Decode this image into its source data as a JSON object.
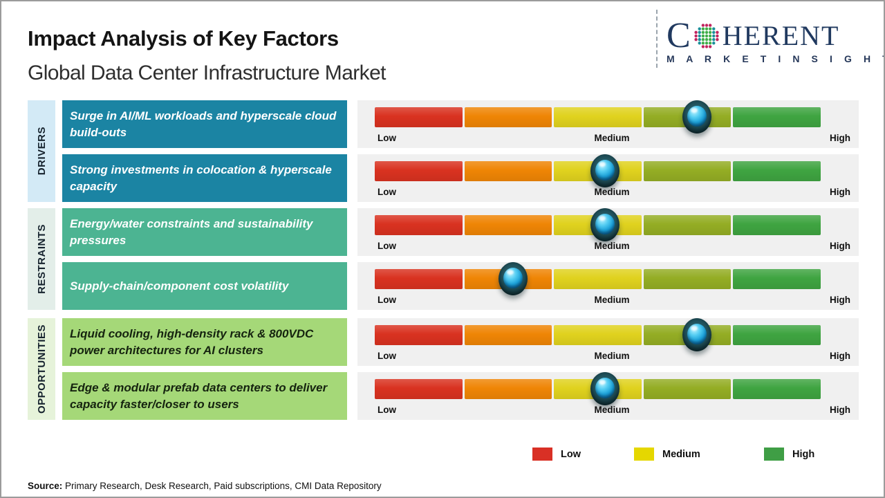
{
  "header": {
    "title": "Impact Analysis of Key Factors",
    "subtitle": "Global Data Center Infrastructure Market"
  },
  "logo": {
    "word_start": "C",
    "word_end": "HERENT",
    "tagline": "M A R K E T   I N S I G H T S",
    "colors": {
      "navy": "#20395f",
      "teal": "#1a8f9a",
      "green": "#3fae49",
      "magenta": "#c2245f"
    }
  },
  "groups": [
    {
      "label": "DRIVERS",
      "box_color": "#d3eaf6",
      "card_color": "#1b84a3",
      "text_color": "#ffffff"
    },
    {
      "label": "RESTRAINTS",
      "box_color": "#e3eee9",
      "card_color": "#4cb492",
      "text_color": "#ffffff"
    },
    {
      "label": "OPPORTUNITIES",
      "box_color": "#e6f3da",
      "card_color": "#a5d878",
      "text_color": "#15230f"
    }
  ],
  "rows": [
    {
      "group_index": 0,
      "text": "Surge in AI/ML workloads and hyperscale cloud build-outs"
    },
    {
      "group_index": 0,
      "text": "Strong investments in colocation & hyperscale capacity"
    },
    {
      "group_index": 1,
      "text": "Energy/water constraints and sustainability pressures"
    },
    {
      "group_index": 1,
      "text": "Supply-chain/component cost volatility"
    },
    {
      "group_index": 2,
      "text": "Liquid cooling, high-density rack & 800VDC power architectures for AI clusters"
    },
    {
      "group_index": 2,
      "text": "Edge & modular prefab data centers to deliver capacity faster/closer to users"
    }
  ],
  "scale": {
    "low": "Low",
    "medium": "Medium",
    "high": "High"
  },
  "bar": {
    "segment_colors": [
      "#d93220",
      "#ef8505",
      "#e0d21e",
      "#94ad24",
      "#3fa441"
    ]
  },
  "legend": {
    "items": [
      {
        "label": "Low",
        "color": "#d93025"
      },
      {
        "label": "Medium",
        "color": "#e5d700"
      },
      {
        "label": "High",
        "color": "#3f9e45"
      }
    ]
  },
  "source": {
    "prefix": "Source:",
    "text": " Primary Research, Desk Research, Paid subscriptions, CMI Data Repository"
  },
  "chart_data": {
    "type": "bar",
    "title": "Impact Analysis of Key Factors",
    "subtitle": "Global Data Center Infrastructure Market",
    "categories": [
      "Surge in AI/ML workloads and hyperscale cloud build-outs",
      "Strong investments in colocation & hyperscale capacity",
      "Energy/water constraints and sustainability pressures",
      "Supply-chain/component cost volatility",
      "Liquid cooling, high-density rack & 800VDC power architectures for AI clusters",
      "Edge & modular prefab data centers to deliver capacity faster/closer to users"
    ],
    "category_groups": [
      "Drivers",
      "Drivers",
      "Restraints",
      "Restraints",
      "Opportunities",
      "Opportunities"
    ],
    "values": [
      72.2,
      51.6,
      51.6,
      31,
      72.2,
      51.6
    ],
    "value_meaning": "marker position on Low-to-High impact scale, percent of bar length",
    "axis_labels": [
      "Low",
      "Medium",
      "High"
    ],
    "xlim": [
      0,
      100
    ],
    "legend_entries": [
      "Low",
      "Medium",
      "High"
    ],
    "legend_position": "bottom",
    "segment_colors": [
      "#d93220",
      "#ef8505",
      "#e0d21e",
      "#94ad24",
      "#3fa441"
    ]
  }
}
